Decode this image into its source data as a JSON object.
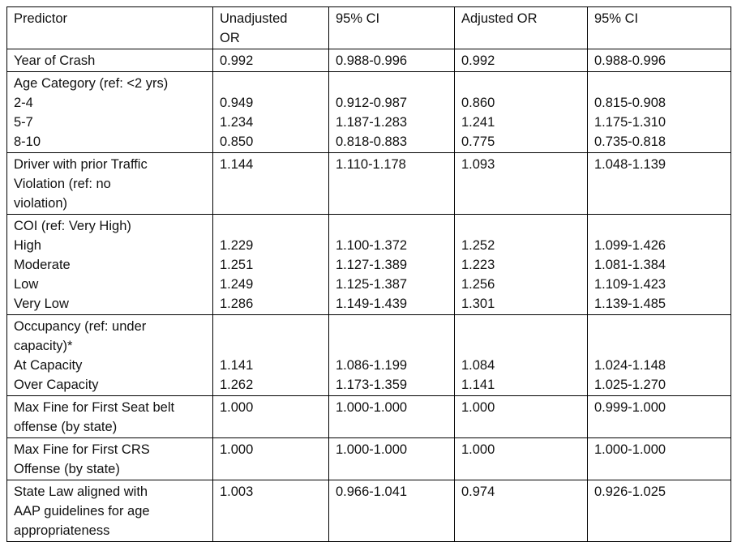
{
  "header": [
    "Predictor",
    "Unadjusted\nOR",
    "95% CI",
    "Adjusted OR",
    "95% CI"
  ],
  "rows": [
    [
      "Year of Crash",
      "0.992",
      "0.988-0.996",
      "0.992",
      "0.988-0.996"
    ],
    [
      "Age Category  (ref: <2 yrs)\n2-4\n5-7\n8-10",
      "\n0.949\n1.234\n0.850",
      "\n0.912-0.987\n1.187-1.283\n0.818-0.883",
      "\n0.860\n1.241\n0.775",
      "\n0.815-0.908\n1.175-1.310\n0.735-0.818"
    ],
    [
      "Driver with prior Traffic\nViolation (ref: no\nviolation)",
      "1.144",
      "1.110-1.178",
      "1.093",
      "1.048-1.139"
    ],
    [
      "COI (ref: Very High)\nHigh\nModerate\nLow\nVery Low",
      "\n1.229\n1.251\n1.249\n1.286",
      "\n1.100-1.372\n1.127-1.389\n1.125-1.387\n1.149-1.439",
      "\n1.252\n1.223\n1.256\n1.301",
      "\n1.099-1.426\n1.081-1.384\n1.109-1.423\n1.139-1.485"
    ],
    [
      "Occupancy (ref: under\ncapacity)*\nAt Capacity\nOver Capacity",
      "\n\n1.141\n1.262",
      "\n\n1.086-1.199\n1.173-1.359",
      "\n\n1.084\n1.141",
      "\n\n1.024-1.148\n1.025-1.270"
    ],
    [
      "Max Fine for First Seat belt\noffense (by state)",
      "1.000",
      "1.000-1.000",
      "1.000",
      "0.999-1.000"
    ],
    [
      "Max Fine for First CRS\nOffense (by state)",
      "1.000",
      "1.000-1.000",
      "1.000",
      "1.000-1.000"
    ],
    [
      "State Law aligned with\nAAP guidelines for age\nappropriateness",
      "1.003",
      "0.966-1.041",
      "0.974",
      "0.926-1.025"
    ]
  ]
}
